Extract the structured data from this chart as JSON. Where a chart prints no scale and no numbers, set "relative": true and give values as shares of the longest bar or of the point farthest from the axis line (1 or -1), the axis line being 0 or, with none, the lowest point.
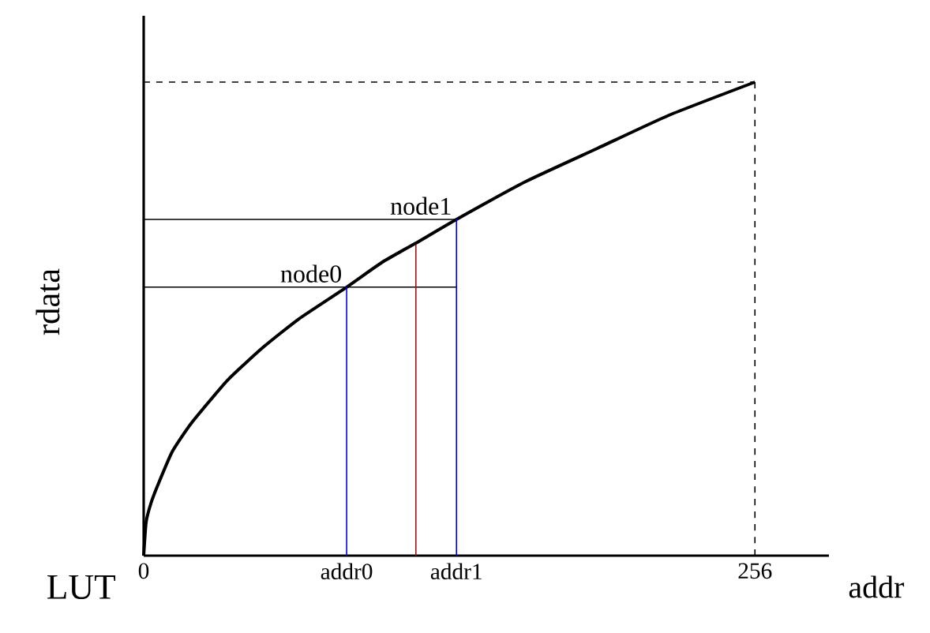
{
  "chart_data": {
    "type": "line",
    "xlabel": "addr",
    "ylabel": "rdata",
    "relative": true,
    "tick_labels": "x",
    "marker": "none",
    "xlim": [
      0,
      287
    ],
    "xticks": [
      {
        "value": 0,
        "label": "0"
      },
      {
        "value": 85,
        "label": "addr0"
      },
      {
        "value": 131,
        "label": "addr1"
      },
      {
        "value": 256,
        "label": "256"
      }
    ],
    "annotations": [
      "LUT",
      {
        "text": "node0",
        "x": 85,
        "y": 0.567
      },
      {
        "text": "node1",
        "x": 131,
        "y": 0.71
      }
    ],
    "series": [
      {
        "color": "#000000",
        "x": [
          0,
          1,
          3,
          6,
          12,
          20,
          35,
          50,
          65,
          85,
          100,
          114,
          131,
          160,
          190,
          220,
          256
        ],
        "values": [
          0,
          0.07,
          0.11,
          0.15,
          0.22,
          0.28,
          0.37,
          0.44,
          0.5,
          0.567,
          0.62,
          0.66,
          0.71,
          0.79,
          0.86,
          0.93,
          1
        ]
      },
      {
        "color": "#000000",
        "x": [
          0,
          131
        ],
        "values": [
          0.567,
          0.567
        ]
      },
      {
        "color": "#000000",
        "x": [
          0,
          131
        ],
        "values": [
          0.71,
          0.71
        ]
      },
      {
        "color": "#0000ff",
        "x": [
          85,
          85
        ],
        "values": [
          0,
          0.567
        ]
      },
      {
        "color": "#0000ff",
        "x": [
          131,
          131
        ],
        "values": [
          0,
          0.71
        ]
      },
      {
        "color": "#8b1a1a",
        "x": [
          114,
          114
        ],
        "values": [
          0,
          0.657
        ]
      },
      {
        "color": "#000000",
        "line_style": "dashed",
        "x": [
          0,
          256
        ],
        "values": [
          1,
          1
        ]
      },
      {
        "color": "#000000",
        "line_style": "dashed",
        "x": [
          256,
          256
        ],
        "values": [
          0,
          1
        ]
      }
    ]
  }
}
